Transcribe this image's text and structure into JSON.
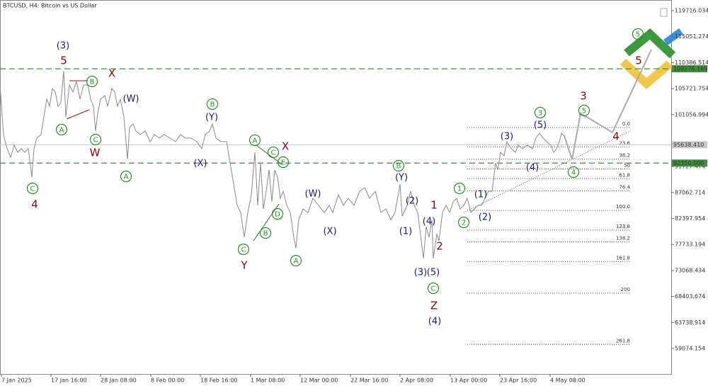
{
  "chart_data": {
    "type": "line",
    "title": "BTCUSD, H4:  Bitcoin vs US Dollar",
    "xlim": [
      0,
      948
    ],
    "ylim": [
      54497,
      121623
    ],
    "xticks": [
      {
        "value": 2,
        "label": "7 Jan 2025"
      },
      {
        "value": 72,
        "label": "17 Jan 16:00"
      },
      {
        "value": 142,
        "label": "28 Jan 08:00"
      },
      {
        "value": 213,
        "label": "8 Feb 00:00"
      },
      {
        "value": 283,
        "label": "18 Feb 16:00"
      },
      {
        "value": 354,
        "label": "1 Mar 08:00"
      },
      {
        "value": 424,
        "label": "12 Mar 00:00"
      },
      {
        "value": 495,
        "label": "22 Mar 16:00"
      },
      {
        "value": 565,
        "label": "2 Apr 08:00"
      },
      {
        "value": 636,
        "label": "13 Apr 00:00"
      },
      {
        "value": 706,
        "label": "23 Apr 16:00"
      },
      {
        "value": 777,
        "label": "4 May 08:00"
      }
    ],
    "yticks": [
      119716.034,
      115051.274,
      110386.514,
      105721.754,
      101056.994,
      91727.474,
      87062.714,
      82397.954,
      77733.194,
      73068.434,
      68403.674,
      63738.914,
      59074.154
    ],
    "grid": false,
    "series": [
      {
        "color": "#8a8a8a",
        "x": [
          0,
          5,
          10,
          15,
          20,
          25,
          30,
          35,
          40,
          45,
          48,
          52,
          58,
          62,
          66,
          70,
          74,
          78,
          82,
          86,
          90,
          93,
          98,
          103,
          108,
          113,
          118,
          124,
          128,
          132,
          135,
          138,
          142,
          148,
          152,
          158,
          162,
          166,
          170,
          175,
          180,
          183,
          188,
          192,
          198,
          205,
          212,
          218,
          225,
          232,
          240,
          248,
          255,
          262,
          270,
          278,
          285,
          290,
          296,
          300,
          305,
          312,
          320,
          325,
          330,
          335,
          340,
          345,
          350,
          355,
          360,
          364,
          368,
          372,
          376,
          380,
          384,
          388,
          392,
          396,
          400,
          405,
          410,
          415,
          418,
          422,
          428,
          435,
          442,
          450,
          458,
          465,
          470,
          478,
          485,
          492,
          500,
          508,
          515,
          522,
          530,
          538,
          545,
          552,
          558,
          565,
          568,
          575,
          580,
          585,
          590,
          595,
          598,
          602,
          606,
          610,
          612,
          617,
          620,
          625,
          630,
          635,
          640,
          645,
          650,
          655,
          660,
          665,
          670,
          675,
          680,
          685,
          690,
          695,
          700,
          703,
          707,
          712,
          716,
          722,
          728,
          732,
          738,
          745,
          752,
          757,
          762,
          767,
          772,
          778,
          782,
          786,
          790,
          793,
          797
        ],
        "values": [
          106367,
          97468,
          94926,
          93400,
          95561,
          94290,
          94926,
          94290,
          94926,
          89840,
          94926,
          96833,
          97468,
          100646,
          103825,
          102553,
          105732,
          105096,
          102553,
          103189,
          108910,
          100646,
          106367,
          105096,
          107003,
          103825,
          106367,
          106367,
          103825,
          102553,
          98104,
          101282,
          103825,
          104460,
          102553,
          105732,
          105096,
          102553,
          103825,
          100646,
          93019,
          98740,
          99375,
          98104,
          97468,
          98104,
          96197,
          97468,
          96833,
          97468,
          96833,
          96197,
          97468,
          96833,
          96833,
          96197,
          94926,
          97468,
          98104,
          99375,
          96833,
          96197,
          96197,
          92383,
          88569,
          84755,
          83484,
          79034,
          83484,
          86662,
          94290,
          84755,
          92383,
          84120,
          87298,
          91112,
          85391,
          91112,
          89840,
          86027,
          87298,
          84755,
          83484,
          79034,
          77127,
          82213,
          84120,
          83484,
          86027,
          84755,
          83484,
          84755,
          83484,
          86662,
          84755,
          86027,
          84755,
          87298,
          87933,
          86027,
          87298,
          83484,
          84120,
          82213,
          83484,
          88569,
          82848,
          84755,
          87298,
          84755,
          83484,
          78399,
          75220,
          80941,
          79034,
          82213,
          75220,
          79670,
          78399,
          83484,
          84755,
          83484,
          85391,
          86027,
          84120,
          84755,
          86027,
          83484,
          84120,
          84755,
          84755,
          86027,
          87298,
          87298,
          92383,
          91112,
          94290,
          93654,
          96197,
          94926,
          94290,
          95561,
          94926,
          95561,
          94926,
          96833,
          97723,
          96833,
          96197,
          95561,
          94290,
          94926,
          96197,
          97723,
          97214
        ]
      },
      {
        "color": "#aaaaaa",
        "x": [
          797,
          808,
          820,
          865,
          920
        ],
        "values": [
          97214,
          93019,
          101282,
          97850,
          112724
        ]
      }
    ],
    "trendline": {
      "x": [
        655,
        890
      ],
      "values": [
        83484,
        98104
      ]
    },
    "hlines": [
      {
        "value": 109276.169,
        "label": "109276.169",
        "color": "#3f8f3f"
      },
      {
        "value": 92350,
        "label": "92350.000",
        "color": "#3f8f3f"
      },
      {
        "value": 95638.41,
        "label": "95638.410",
        "color": "#c8c8c8"
      }
    ],
    "fibonacci": {
      "x": [
        660,
        890
      ],
      "price_0": 98740,
      "price_100": 83866,
      "levels": [
        {
          "value": 0,
          "label": "0.0"
        },
        23.6,
        38.2,
        50,
        61.8,
        76.4,
        {
          "value": 100,
          "label": "100.0"
        },
        123.8,
        138.2,
        161.8,
        200,
        261.8
      ]
    },
    "annotations": [
      {
        "text": "(3)",
        "x": 89,
        "y": 113359,
        "color": "#1c1c6e",
        "circle": false
      },
      {
        "text": "5",
        "x": 90,
        "y": 110690,
        "color": "#7a0c0c",
        "circle": false
      },
      {
        "text": "X",
        "x": 158,
        "y": 108401,
        "color": "#7a0c0c",
        "circle": false
      },
      {
        "text": "B",
        "x": 130,
        "y": 107003,
        "color": "#2e8b2e",
        "circle": true
      },
      {
        "text": "(W)",
        "x": 185,
        "y": 103825,
        "color": "#1c1c6e",
        "circle": false
      },
      {
        "text": "A",
        "x": 87,
        "y": 98358,
        "color": "#2e8b2e",
        "circle": true
      },
      {
        "text": "C",
        "x": 135,
        "y": 96578,
        "color": "#2e8b2e",
        "circle": true
      },
      {
        "text": "W",
        "x": 134,
        "y": 94163,
        "color": "#7a0c0c",
        "circle": false
      },
      {
        "text": "4",
        "x": 49,
        "y": 84882,
        "color": "#7a0c0c",
        "circle": false
      },
      {
        "text": "C",
        "x": 46,
        "y": 87806,
        "color": "#2e8b2e",
        "circle": true
      },
      {
        "text": "A",
        "x": 178,
        "y": 89968,
        "color": "#2e8b2e",
        "circle": true
      },
      {
        "text": "B",
        "x": 300,
        "y": 102935,
        "color": "#2e8b2e",
        "circle": true
      },
      {
        "text": "(Y)",
        "x": 299,
        "y": 100519,
        "color": "#1c1c6e",
        "circle": false
      },
      {
        "text": "(X)",
        "x": 283,
        "y": 92256,
        "color": "#1c1c6e",
        "circle": false
      },
      {
        "text": "A",
        "x": 360,
        "y": 96451,
        "color": "#2e8b2e",
        "circle": true
      },
      {
        "text": "X",
        "x": 403,
        "y": 95307,
        "color": "#7a0c0c",
        "circle": false
      },
      {
        "text": "C",
        "x": 386,
        "y": 94290,
        "color": "#2e8b2e",
        "circle": true
      },
      {
        "text": "E",
        "x": 400,
        "y": 92510,
        "color": "#2e8b2e",
        "circle": true
      },
      {
        "text": "D",
        "x": 392,
        "y": 83230,
        "color": "#2e8b2e",
        "circle": true
      },
      {
        "text": "B",
        "x": 375,
        "y": 79797,
        "color": "#2e8b2e",
        "circle": true
      },
      {
        "text": "C",
        "x": 344,
        "y": 76873,
        "color": "#2e8b2e",
        "circle": true
      },
      {
        "text": "Y",
        "x": 345,
        "y": 73949,
        "color": "#7a0c0c",
        "circle": false
      },
      {
        "text": "A",
        "x": 418,
        "y": 74839,
        "color": "#2e8b2e",
        "circle": true
      },
      {
        "text": "(W)",
        "x": 442,
        "y": 86789,
        "color": "#1c1c6e",
        "circle": false
      },
      {
        "text": "(X)",
        "x": 466,
        "y": 80051,
        "color": "#1c1c6e",
        "circle": false
      },
      {
        "text": "B",
        "x": 563,
        "y": 91875,
        "color": "#2e8b2e",
        "circle": true
      },
      {
        "text": "(Y)",
        "x": 567,
        "y": 89713,
        "color": "#1c1c6e",
        "circle": false
      },
      {
        "text": "(2)",
        "x": 582,
        "y": 85518,
        "color": "#1c1c6e",
        "circle": false
      },
      {
        "text": "(1)",
        "x": 573,
        "y": 80051,
        "color": "#1c1c6e",
        "circle": false
      },
      {
        "text": "(4)",
        "x": 606,
        "y": 81831,
        "color": "#1c1c6e",
        "circle": false
      },
      {
        "text": "1",
        "x": 613,
        "y": 84755,
        "color": "#7a0c0c",
        "circle": false
      },
      {
        "text": "2",
        "x": 621,
        "y": 77382,
        "color": "#7a0c0c",
        "circle": false
      },
      {
        "text": "(3)",
        "x": 594,
        "y": 72678,
        "color": "#1c1c6e",
        "circle": false
      },
      {
        "text": "(5)",
        "x": 612,
        "y": 72678,
        "color": "#1c1c6e",
        "circle": false
      },
      {
        "text": "C",
        "x": 612,
        "y": 69881,
        "color": "#2e8b2e",
        "circle": true
      },
      {
        "text": "Z",
        "x": 613,
        "y": 66703,
        "color": "#7a0c0c",
        "circle": false
      },
      {
        "text": "(4)",
        "x": 614,
        "y": 63906,
        "color": "#1c1c6e",
        "circle": false
      },
      {
        "text": "1",
        "x": 649,
        "y": 87806,
        "color": "#2e8b2e",
        "circle": true
      },
      {
        "text": "2",
        "x": 655,
        "y": 81704,
        "color": "#2e8b2e",
        "circle": true
      },
      {
        "text": "(1)",
        "x": 679,
        "y": 86662,
        "color": "#1c1c6e",
        "circle": false
      },
      {
        "text": "(2)",
        "x": 685,
        "y": 82594,
        "color": "#1c1c6e",
        "circle": false
      },
      {
        "text": "(3)",
        "x": 716,
        "y": 97087,
        "color": "#1c1c6e",
        "circle": false
      },
      {
        "text": "(4)",
        "x": 752,
        "y": 91493,
        "color": "#1c1c6e",
        "circle": false
      },
      {
        "text": "3",
        "x": 763,
        "y": 101409,
        "color": "#2e8b2e",
        "circle": true
      },
      {
        "text": "(5)",
        "x": 763,
        "y": 99121,
        "color": "#1c1c6e",
        "circle": false
      },
      {
        "text": "4",
        "x": 810,
        "y": 90730,
        "color": "#2e8b2e",
        "circle": true
      },
      {
        "text": "5",
        "x": 825,
        "y": 101791,
        "color": "#2e8b2e",
        "circle": true
      },
      {
        "text": "3",
        "x": 824,
        "y": 104333,
        "color": "#7a0c0c",
        "circle": false
      },
      {
        "text": "4",
        "x": 870,
        "y": 97087,
        "color": "#7a0c0c",
        "circle": false
      },
      {
        "text": "5",
        "x": 901,
        "y": 115521,
        "color": "#2e8b2e",
        "circle": true
      },
      {
        "text": "5",
        "x": 902,
        "y": 110690,
        "color": "#7a0c0c",
        "circle": false
      }
    ]
  }
}
